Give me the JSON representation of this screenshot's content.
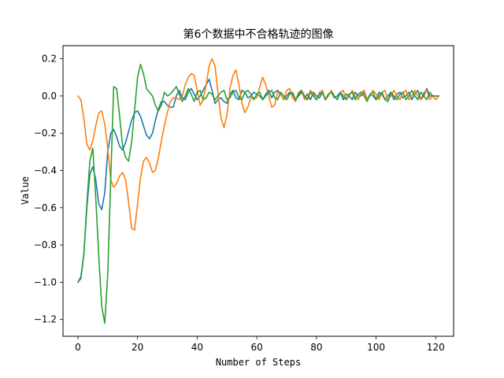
{
  "chart_data": {
    "type": "line",
    "title": "第6个数据中不合格轨迹的图像",
    "xlabel": "Number of Steps",
    "ylabel": "Value",
    "xlim": [
      -5,
      126
    ],
    "ylim": [
      -1.29,
      0.27
    ],
    "xticks": [
      0,
      20,
      40,
      60,
      80,
      100,
      120
    ],
    "xtick_labels": [
      "0",
      "20",
      "40",
      "60",
      "80",
      "100",
      "120"
    ],
    "yticks": [
      0.2,
      0.0,
      -0.2,
      -0.4,
      -0.6,
      -0.8,
      -1.0,
      -1.2
    ],
    "ytick_labels": [
      "0.2",
      "0.0",
      "−0.2",
      "−0.4",
      "−0.6",
      "−0.8",
      "−1.0",
      "−1.2"
    ],
    "grid": false,
    "series": [
      {
        "color": "#1f77b4",
        "x": [
          0,
          1,
          2,
          3,
          4,
          5,
          6,
          7,
          8,
          9,
          10,
          11,
          12,
          13,
          14,
          15,
          16,
          17,
          18,
          19,
          20,
          21,
          22,
          23,
          24,
          25,
          26,
          27,
          28,
          29,
          30,
          31,
          32,
          33,
          34,
          35,
          36,
          37,
          38,
          39,
          40,
          41,
          42,
          43,
          44,
          45,
          46,
          47,
          48,
          49,
          50,
          51,
          52,
          53,
          54,
          55,
          56,
          57,
          58,
          59,
          60,
          61,
          62,
          63,
          64,
          65,
          66,
          67,
          68,
          69,
          70,
          71,
          72,
          73,
          74,
          75,
          76,
          77,
          78,
          79,
          80,
          81,
          82,
          83,
          84,
          85,
          86,
          87,
          88,
          89,
          90,
          91,
          92,
          93,
          94,
          95,
          96,
          97,
          98,
          99,
          100,
          101,
          102,
          103,
          104,
          105,
          106,
          107,
          108,
          109,
          110,
          111,
          112,
          113,
          114,
          115,
          116,
          117,
          118,
          119,
          120,
          121
        ],
        "y": [
          -1.0,
          -0.98,
          -0.85,
          -0.6,
          -0.42,
          -0.38,
          -0.45,
          -0.58,
          -0.61,
          -0.52,
          -0.3,
          -0.2,
          -0.18,
          -0.22,
          -0.27,
          -0.29,
          -0.25,
          -0.19,
          -0.13,
          -0.09,
          -0.08,
          -0.11,
          -0.16,
          -0.21,
          -0.23,
          -0.2,
          -0.13,
          -0.07,
          -0.03,
          -0.03,
          -0.05,
          -0.06,
          -0.06,
          0.0,
          0.03,
          -0.01,
          -0.02,
          0.02,
          0.04,
          0.01,
          -0.02,
          0.0,
          0.03,
          0.06,
          0.09,
          0.03,
          -0.04,
          -0.02,
          -0.01,
          -0.03,
          -0.04,
          0.01,
          0.03,
          -0.01,
          -0.02,
          0.03,
          0.02,
          -0.01,
          0.0,
          0.02,
          0.01,
          0.0,
          -0.02,
          0.01,
          0.03,
          -0.01,
          0.02,
          0.03,
          0.01,
          -0.02,
          0.0,
          0.02,
          0.01,
          -0.02,
          0.0,
          0.02,
          -0.01,
          0.01,
          -0.02,
          0.02,
          0.0,
          -0.01,
          0.02,
          -0.02,
          0.01,
          0.02,
          -0.01,
          0.0,
          0.02,
          -0.02,
          0.01,
          0.0,
          -0.02,
          0.02,
          0.0,
          0.0,
          0.02,
          -0.02,
          0.01,
          0.0,
          -0.02,
          0.02,
          0.01,
          -0.02,
          0.0,
          0.02,
          -0.02,
          0.01,
          0.02,
          -0.01,
          0.0,
          0.02,
          -0.02,
          0.01,
          0.03,
          -0.02,
          0.0,
          0.04,
          0.0,
          0.0,
          0.0,
          0.0
        ]
      },
      {
        "color": "#ff7f0e",
        "x": [
          0,
          1,
          2,
          3,
          4,
          5,
          6,
          7,
          8,
          9,
          10,
          11,
          12,
          13,
          14,
          15,
          16,
          17,
          18,
          19,
          20,
          21,
          22,
          23,
          24,
          25,
          26,
          27,
          28,
          29,
          30,
          31,
          32,
          33,
          34,
          35,
          36,
          37,
          38,
          39,
          40,
          41,
          42,
          43,
          44,
          45,
          46,
          47,
          48,
          49,
          50,
          51,
          52,
          53,
          54,
          55,
          56,
          57,
          58,
          59,
          60,
          61,
          62,
          63,
          64,
          65,
          66,
          67,
          68,
          69,
          70,
          71,
          72,
          73,
          74,
          75,
          76,
          77,
          78,
          79,
          80,
          81,
          82,
          83,
          84,
          85,
          86,
          87,
          88,
          89,
          90,
          91,
          92,
          93,
          94,
          95,
          96,
          97,
          98,
          99,
          100,
          101,
          102,
          103,
          104,
          105,
          106,
          107,
          108,
          109,
          110,
          111,
          112,
          113,
          114,
          115,
          116,
          117,
          118,
          119,
          120,
          121
        ],
        "y": [
          0.0,
          -0.02,
          -0.12,
          -0.26,
          -0.29,
          -0.24,
          -0.16,
          -0.09,
          -0.08,
          -0.15,
          -0.28,
          -0.45,
          -0.49,
          -0.47,
          -0.43,
          -0.41,
          -0.45,
          -0.57,
          -0.71,
          -0.72,
          -0.58,
          -0.44,
          -0.35,
          -0.33,
          -0.36,
          -0.41,
          -0.4,
          -0.33,
          -0.24,
          -0.16,
          -0.09,
          -0.03,
          -0.01,
          -0.01,
          -0.02,
          0.0,
          0.06,
          0.1,
          0.12,
          0.11,
          0.03,
          -0.05,
          -0.02,
          0.06,
          0.16,
          0.2,
          0.16,
          0.01,
          -0.12,
          -0.17,
          -0.1,
          0.04,
          0.11,
          0.14,
          0.06,
          -0.04,
          -0.09,
          -0.06,
          -0.01,
          -0.01,
          -0.01,
          0.05,
          0.1,
          0.06,
          0.0,
          -0.06,
          -0.05,
          0.02,
          0.01,
          -0.02,
          0.03,
          0.04,
          -0.01,
          -0.03,
          0.02,
          0.03,
          -0.02,
          -0.01,
          0.03,
          0.01,
          -0.02,
          0.02,
          0.03,
          -0.02,
          0.0,
          0.03,
          0.0,
          -0.02,
          0.02,
          0.03,
          -0.02,
          0.0,
          0.03,
          0.0,
          -0.02,
          0.02,
          0.03,
          -0.02,
          0.0,
          0.03,
          0.01,
          -0.02,
          0.02,
          0.03,
          -0.02,
          0.0,
          0.03,
          0.0,
          -0.02,
          0.02,
          0.03,
          -0.02,
          0.0,
          0.03,
          0.0,
          -0.02,
          0.02,
          0.03,
          -0.02,
          0.0,
          -0.02,
          0.0
        ]
      },
      {
        "color": "#2ca02c",
        "x": [
          0,
          1,
          2,
          3,
          4,
          5,
          6,
          7,
          8,
          9,
          10,
          11,
          12,
          13,
          14,
          15,
          16,
          17,
          18,
          19,
          20,
          21,
          22,
          23,
          24,
          25,
          26,
          27,
          28,
          29,
          30,
          31,
          32,
          33,
          34,
          35,
          36,
          37,
          38,
          39,
          40,
          41,
          42,
          43,
          44,
          45,
          46,
          47,
          48,
          49,
          50,
          51,
          52,
          53,
          54,
          55,
          56,
          57,
          58,
          59,
          60,
          61,
          62,
          63,
          64,
          65,
          66,
          67,
          68,
          69,
          70,
          71,
          72,
          73,
          74,
          75,
          76,
          77,
          78,
          79,
          80,
          81,
          82,
          83,
          84,
          85,
          86,
          87,
          88,
          89,
          90,
          91,
          92,
          93,
          94,
          95,
          96,
          97,
          98,
          99,
          100,
          101,
          102,
          103,
          104,
          105,
          106,
          107,
          108,
          109,
          110,
          111,
          112,
          113,
          114,
          115,
          116,
          117,
          118,
          119,
          120,
          121
        ],
        "y": [
          -1.0,
          -0.97,
          -0.85,
          -0.58,
          -0.35,
          -0.28,
          -0.55,
          -0.86,
          -1.13,
          -1.22,
          -0.96,
          -0.45,
          0.05,
          0.04,
          -0.11,
          -0.27,
          -0.33,
          -0.35,
          -0.25,
          -0.08,
          0.1,
          0.17,
          0.12,
          0.04,
          0.02,
          0.0,
          -0.05,
          -0.08,
          -0.05,
          0.02,
          0.0,
          0.01,
          0.03,
          0.05,
          0.01,
          -0.03,
          0.0,
          0.04,
          0.01,
          -0.03,
          0.02,
          0.03,
          -0.02,
          -0.01,
          0.02,
          0.01,
          -0.02,
          0.0,
          0.02,
          0.03,
          -0.02,
          -0.01,
          0.02,
          0.03,
          -0.01,
          -0.02,
          0.02,
          0.03,
          0.01,
          -0.02,
          0.01,
          0.02,
          -0.02,
          0.0,
          0.02,
          0.03,
          -0.01,
          -0.02,
          0.02,
          0.0,
          -0.02,
          0.01,
          0.02,
          -0.02,
          0.01,
          0.03,
          0.0,
          -0.02,
          0.02,
          0.0,
          -0.02,
          0.01,
          0.02,
          -0.02,
          0.01,
          0.02,
          0.0,
          -0.02,
          0.02,
          0.0,
          -0.02,
          0.01,
          0.02,
          -0.02,
          0.01,
          0.02,
          0.0,
          -0.03,
          0.01,
          0.02,
          -0.02,
          0.0,
          0.02,
          -0.02,
          -0.03,
          0.02,
          0.0,
          -0.02,
          0.01,
          0.02,
          -0.02,
          0.0,
          0.03,
          0.0,
          -0.02,
          0.02,
          0.0,
          -0.02,
          0.02,
          0.0,
          0.0,
          0.0
        ]
      }
    ]
  }
}
